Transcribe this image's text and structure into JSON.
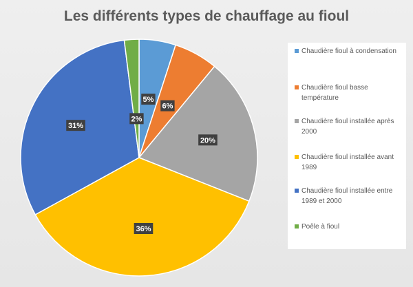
{
  "chart_data": {
    "type": "pie",
    "title": "Les différents types de chauffage au fioul",
    "categories": [
      "Chaudière fioul à condensation",
      "Chaudière fioul basse température",
      "Chaudière fioul installée après 2000",
      "Chaudière fioul installée avant 1989",
      "Chaudière fioul installée entre 1989 et 2000",
      "Poêle à fioul"
    ],
    "values": [
      5,
      6,
      20,
      36,
      31,
      2
    ],
    "data_labels": [
      "5%",
      "6%",
      "20%",
      "36%",
      "31%",
      "2%"
    ],
    "colors": [
      "#5b9bd5",
      "#ed7d31",
      "#a5a5a5",
      "#ffc000",
      "#4472c4",
      "#70ad47"
    ],
    "legend_position": "right"
  }
}
